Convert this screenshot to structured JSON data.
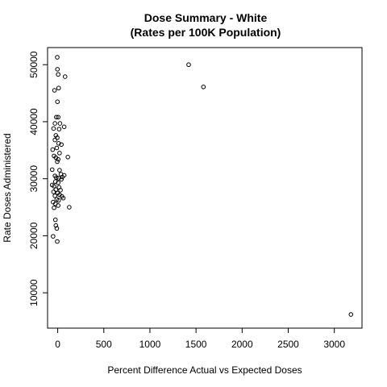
{
  "chart_data": {
    "type": "scatter",
    "title": "Dose Summary - White",
    "subtitle": "(Rates per 100K Population)",
    "xlabel": "Percent Difference Actual vs Expected Doses",
    "ylabel": "Rate Doses Administered",
    "xlim": [
      -110,
      3300
    ],
    "ylim": [
      3800,
      53000
    ],
    "xticks": [
      0,
      500,
      1000,
      1500,
      2000,
      2500,
      3000
    ],
    "yticks": [
      10000,
      20000,
      30000,
      40000,
      50000
    ],
    "grid": false,
    "legend": "none",
    "point_color": "#000000",
    "points": [
      {
        "x": -5,
        "y": 51300
      },
      {
        "x": -3,
        "y": 49200
      },
      {
        "x": 5,
        "y": 48300
      },
      {
        "x": 80,
        "y": 47900
      },
      {
        "x": 1420,
        "y": 50000
      },
      {
        "x": 1580,
        "y": 46100
      },
      {
        "x": -35,
        "y": 45500
      },
      {
        "x": 10,
        "y": 45900
      },
      {
        "x": -3,
        "y": 43500
      },
      {
        "x": -15,
        "y": 40800
      },
      {
        "x": 5,
        "y": 40800
      },
      {
        "x": -30,
        "y": 39700
      },
      {
        "x": 25,
        "y": 39700
      },
      {
        "x": -45,
        "y": 38800
      },
      {
        "x": 15,
        "y": 38700
      },
      {
        "x": 70,
        "y": 39100
      },
      {
        "x": -20,
        "y": 37600
      },
      {
        "x": -5,
        "y": 37200
      },
      {
        "x": -30,
        "y": 36800
      },
      {
        "x": 10,
        "y": 36200
      },
      {
        "x": 40,
        "y": 36000
      },
      {
        "x": -55,
        "y": 35100
      },
      {
        "x": -10,
        "y": 35400
      },
      {
        "x": 20,
        "y": 34500
      },
      {
        "x": -40,
        "y": 34000
      },
      {
        "x": -20,
        "y": 33700
      },
      {
        "x": 5,
        "y": 33400
      },
      {
        "x": -5,
        "y": 33000
      },
      {
        "x": 110,
        "y": 33800
      },
      {
        "x": -60,
        "y": 31600
      },
      {
        "x": 20,
        "y": 31500
      },
      {
        "x": 35,
        "y": 30800
      },
      {
        "x": -30,
        "y": 30500
      },
      {
        "x": 50,
        "y": 30300
      },
      {
        "x": 70,
        "y": 30600
      },
      {
        "x": -15,
        "y": 30200
      },
      {
        "x": 10,
        "y": 30100
      },
      {
        "x": 40,
        "y": 29900
      },
      {
        "x": -25,
        "y": 29500
      },
      {
        "x": 5,
        "y": 29300
      },
      {
        "x": -60,
        "y": 28900
      },
      {
        "x": -40,
        "y": 28700
      },
      {
        "x": 15,
        "y": 28500
      },
      {
        "x": -20,
        "y": 28100
      },
      {
        "x": 30,
        "y": 28000
      },
      {
        "x": -45,
        "y": 27700
      },
      {
        "x": 0,
        "y": 27500
      },
      {
        "x": 20,
        "y": 27200
      },
      {
        "x": -30,
        "y": 27000
      },
      {
        "x": 45,
        "y": 26900
      },
      {
        "x": 60,
        "y": 26600
      },
      {
        "x": -10,
        "y": 26400
      },
      {
        "x": 10,
        "y": 26200
      },
      {
        "x": -50,
        "y": 25900
      },
      {
        "x": -25,
        "y": 25600
      },
      {
        "x": 5,
        "y": 25300
      },
      {
        "x": -40,
        "y": 24900
      },
      {
        "x": 125,
        "y": 25000
      },
      {
        "x": -25,
        "y": 22800
      },
      {
        "x": -20,
        "y": 21800
      },
      {
        "x": -10,
        "y": 21300
      },
      {
        "x": -50,
        "y": 19900
      },
      {
        "x": -5,
        "y": 19000
      },
      {
        "x": 3180,
        "y": 6200
      }
    ]
  }
}
